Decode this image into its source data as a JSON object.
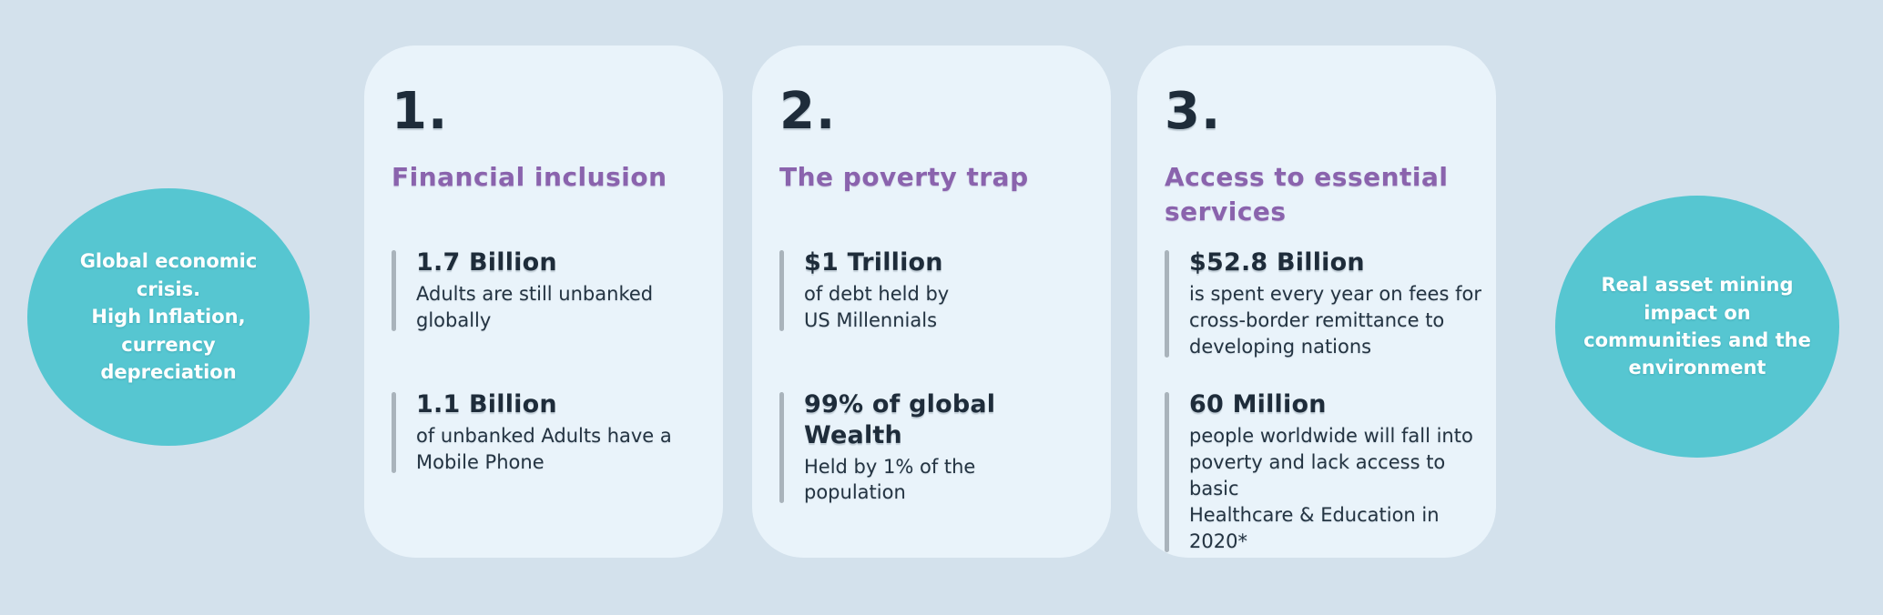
{
  "page": {
    "background_color": "#d3e1ec",
    "card_color": "#e9f3fa",
    "accent_teal": "#56c6d1",
    "accent_purple": "#8a63ad",
    "text_dark": "#1e2c3a"
  },
  "left_circle": {
    "text": "Global economic\ncrisis.\nHigh Inflation,\ncurrency\ndepreciation"
  },
  "right_circle": {
    "text": "Real asset  mining\nimpact on\ncommunities and the\nenvironment"
  },
  "cards": [
    {
      "number": "1.",
      "title": "Financial inclusion",
      "stats": [
        {
          "value": "1.7 Billion",
          "description": "Adults are still unbanked\nglobally"
        },
        {
          "value": "1.1 Billion",
          "description": "of unbanked Adults have a\nMobile Phone"
        }
      ]
    },
    {
      "number": "2.",
      "title": "The poverty trap",
      "stats": [
        {
          "value": "$1 Trillion",
          "description": "of debt held by\nUS Millennials"
        },
        {
          "value": "99% of global Wealth",
          "description": "Held by 1% of the\npopulation"
        }
      ]
    },
    {
      "number": "3.",
      "title": "Access to essential\nservices",
      "stats": [
        {
          "value": "$52.8 Billion",
          "description": "is spent every year on fees for\ncross-border remittance to\ndeveloping nations"
        },
        {
          "value": "60 Million",
          "description": "people worldwide will fall into\npoverty and lack access to basic\nHealthcare & Education in 2020*"
        }
      ]
    }
  ]
}
